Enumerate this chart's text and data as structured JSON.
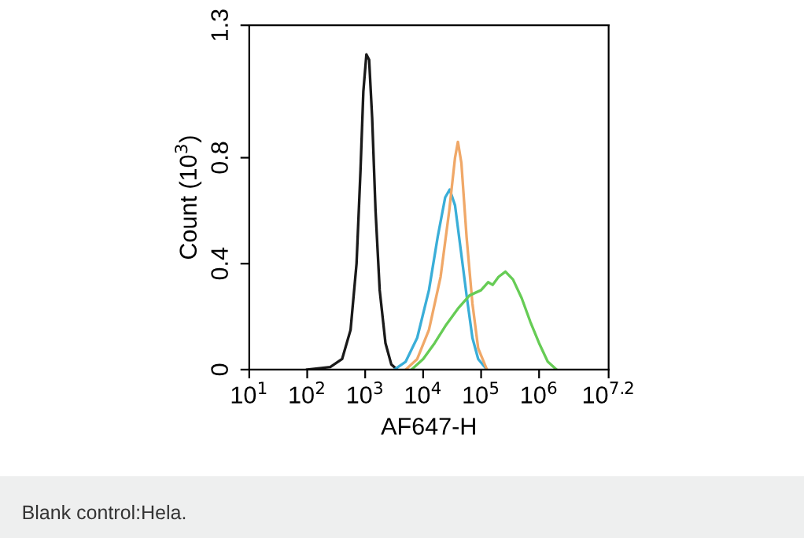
{
  "chart_data": {
    "type": "line",
    "xlabel": "AF647-H",
    "ylabel": "Count (10$^{3}$)",
    "log": "x",
    "grid": false,
    "legend": false,
    "marker": "none",
    "line_style": "solid",
    "xlim": [
      10,
      15848932
    ],
    "ylim": [
      0,
      1.3
    ],
    "xticks": [
      {
        "value": 10,
        "label": "10$^{1}$"
      },
      {
        "value": 100,
        "label": "10$^{2}$"
      },
      {
        "value": 1000,
        "label": "10$^{3}$"
      },
      {
        "value": 10000,
        "label": "10$^{4}$"
      },
      {
        "value": 100000,
        "label": "10$^{5}$"
      },
      {
        "value": 1000000,
        "label": "10$^{6}$"
      },
      {
        "value": 15848932,
        "label": "10$^{7.2}$"
      }
    ],
    "yticks": [
      0,
      0.4,
      0.8,
      1.3
    ],
    "annotations": [
      "Blank control:Hela."
    ],
    "series": [
      {
        "color": "#1a1a1a",
        "x": [
          100,
          250,
          400,
          560,
          710,
          830,
          930,
          1050,
          1170,
          1320,
          1510,
          1780,
          2240,
          2820,
          3550
        ],
        "values": [
          0,
          0.01,
          0.04,
          0.15,
          0.4,
          0.75,
          1.05,
          1.19,
          1.17,
          0.95,
          0.6,
          0.3,
          0.1,
          0.02,
          0
        ]
      },
      {
        "color": "#3aaed8",
        "x": [
          3200,
          5000,
          7900,
          12600,
          17800,
          24000,
          28800,
          35500,
          44700,
          56200,
          70800,
          89100,
          126000
        ],
        "values": [
          0,
          0.03,
          0.12,
          0.3,
          0.5,
          0.65,
          0.68,
          0.62,
          0.45,
          0.28,
          0.12,
          0.04,
          0
        ]
      },
      {
        "color": "#f0a868",
        "x": [
          5000,
          7900,
          12600,
          20000,
          28200,
          35500,
          39800,
          45700,
          56200,
          70800,
          89100,
          126000
        ],
        "values": [
          0,
          0.04,
          0.15,
          0.35,
          0.6,
          0.8,
          0.86,
          0.78,
          0.5,
          0.25,
          0.08,
          0
        ]
      },
      {
        "color": "#66cc55",
        "x": [
          6300,
          10000,
          15800,
          25100,
          39800,
          63100,
          100000,
          132000,
          158000,
          200000,
          263000,
          355000,
          501000,
          708000,
          1000000,
          1410000,
          2000000
        ],
        "values": [
          0,
          0.04,
          0.1,
          0.17,
          0.23,
          0.28,
          0.3,
          0.33,
          0.32,
          0.35,
          0.37,
          0.34,
          0.27,
          0.18,
          0.1,
          0.03,
          0
        ]
      }
    ]
  }
}
